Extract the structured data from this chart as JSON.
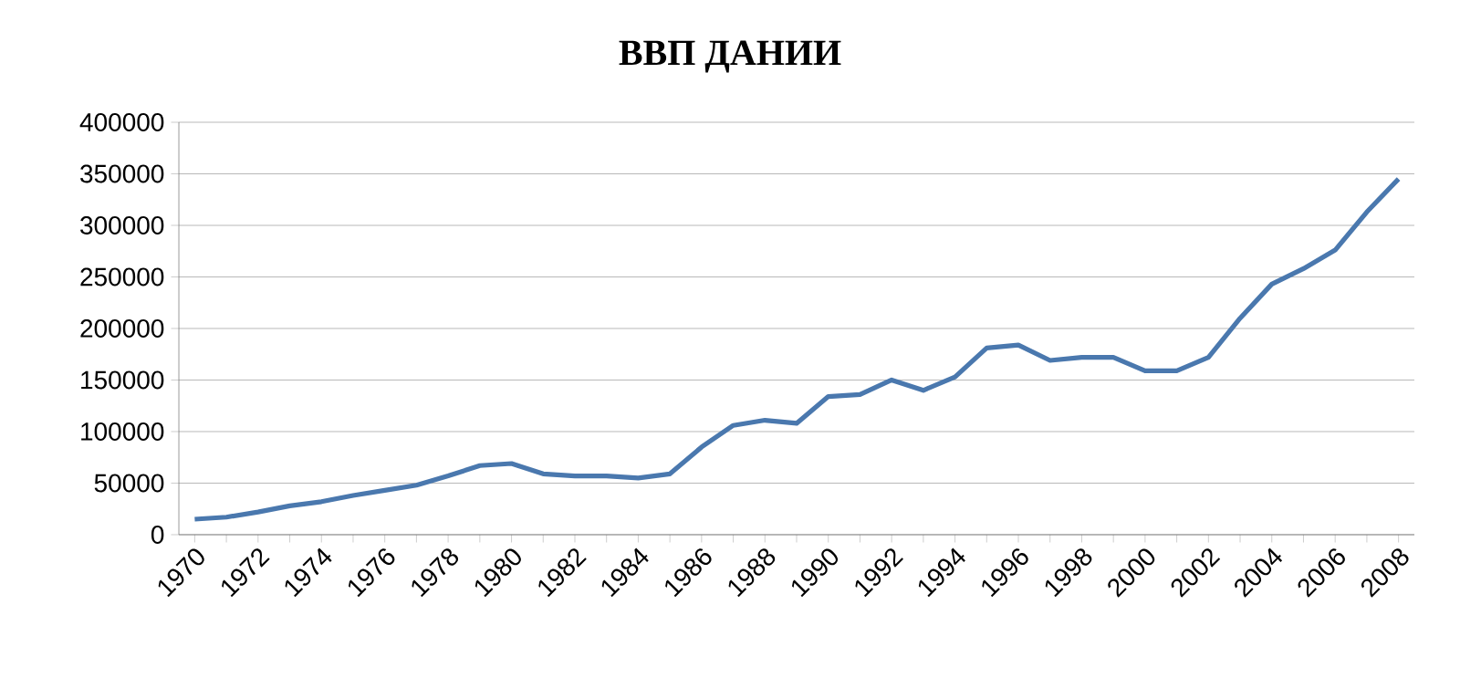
{
  "chart_data": {
    "type": "line",
    "title": "ВВП ДАНИИ",
    "categories": [
      "1970",
      null,
      "1972",
      null,
      "1974",
      null,
      "1976",
      null,
      "1978",
      null,
      "1980",
      null,
      "1982",
      null,
      "1984",
      null,
      "1986",
      null,
      "1988",
      null,
      "1990",
      null,
      "1992",
      null,
      "1994",
      null,
      "1996",
      null,
      "1998",
      null,
      "2000",
      null,
      "2002",
      null,
      "2004",
      null,
      "2006",
      null,
      "2008"
    ],
    "values": [
      15000,
      17000,
      22000,
      28000,
      32000,
      38000,
      43000,
      48000,
      57000,
      67000,
      69000,
      59000,
      57000,
      57000,
      55000,
      59000,
      85000,
      106000,
      111000,
      108000,
      134000,
      136000,
      150000,
      140000,
      153000,
      181000,
      184000,
      169000,
      172000,
      172000,
      159000,
      159000,
      172000,
      210000,
      243000,
      258000,
      276000,
      313000,
      345000
    ],
    "color": "#4a78ae",
    "ylim": [
      0,
      400000
    ],
    "yticks": [
      0,
      50000,
      100000,
      150000,
      200000,
      250000,
      300000,
      350000,
      400000
    ],
    "grid": "y",
    "marker": "none",
    "line_style": "solid"
  }
}
